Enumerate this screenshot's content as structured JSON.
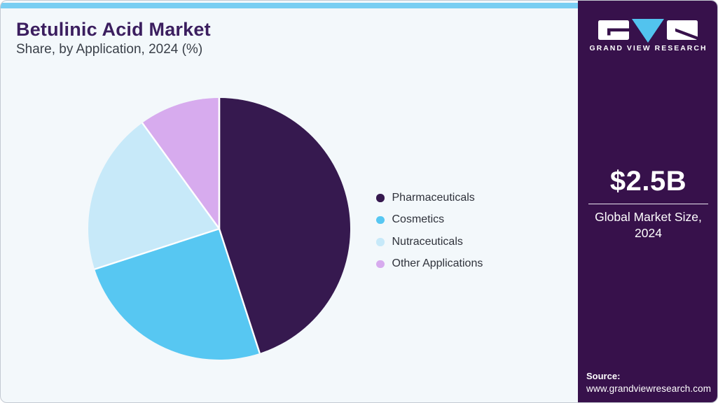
{
  "header": {
    "title": "Betulinic Acid Market",
    "subtitle": "Share, by Application, 2024 (%)"
  },
  "chart_data": {
    "type": "pie",
    "title": "Betulinic Acid Market Share, by Application, 2024 (%)",
    "categories": [
      "Pharmaceuticals",
      "Cosmetics",
      "Nutraceuticals",
      "Other Applications"
    ],
    "values": [
      45,
      25,
      20,
      10
    ],
    "unit": "%",
    "colors": [
      "#36194f",
      "#57c7f2",
      "#c7e9f9",
      "#d7abee"
    ],
    "start_angle_deg": 0,
    "direction": "clockwise",
    "legend_position": "right",
    "data_labels": false
  },
  "sidebar": {
    "brand_name": "GRAND VIEW RESEARCH",
    "market_size_value": "$2.5B",
    "market_size_label": "Global Market Size, 2024",
    "source_label": "Source:",
    "source_url": "www.grandviewresearch.com"
  },
  "colors": {
    "accent_bar": "#79cef2",
    "sidebar_background": "#37114b",
    "title_text": "#3b1e5f",
    "logo_triangle": "#52c3ee",
    "slice_separator": "#ffffff"
  }
}
